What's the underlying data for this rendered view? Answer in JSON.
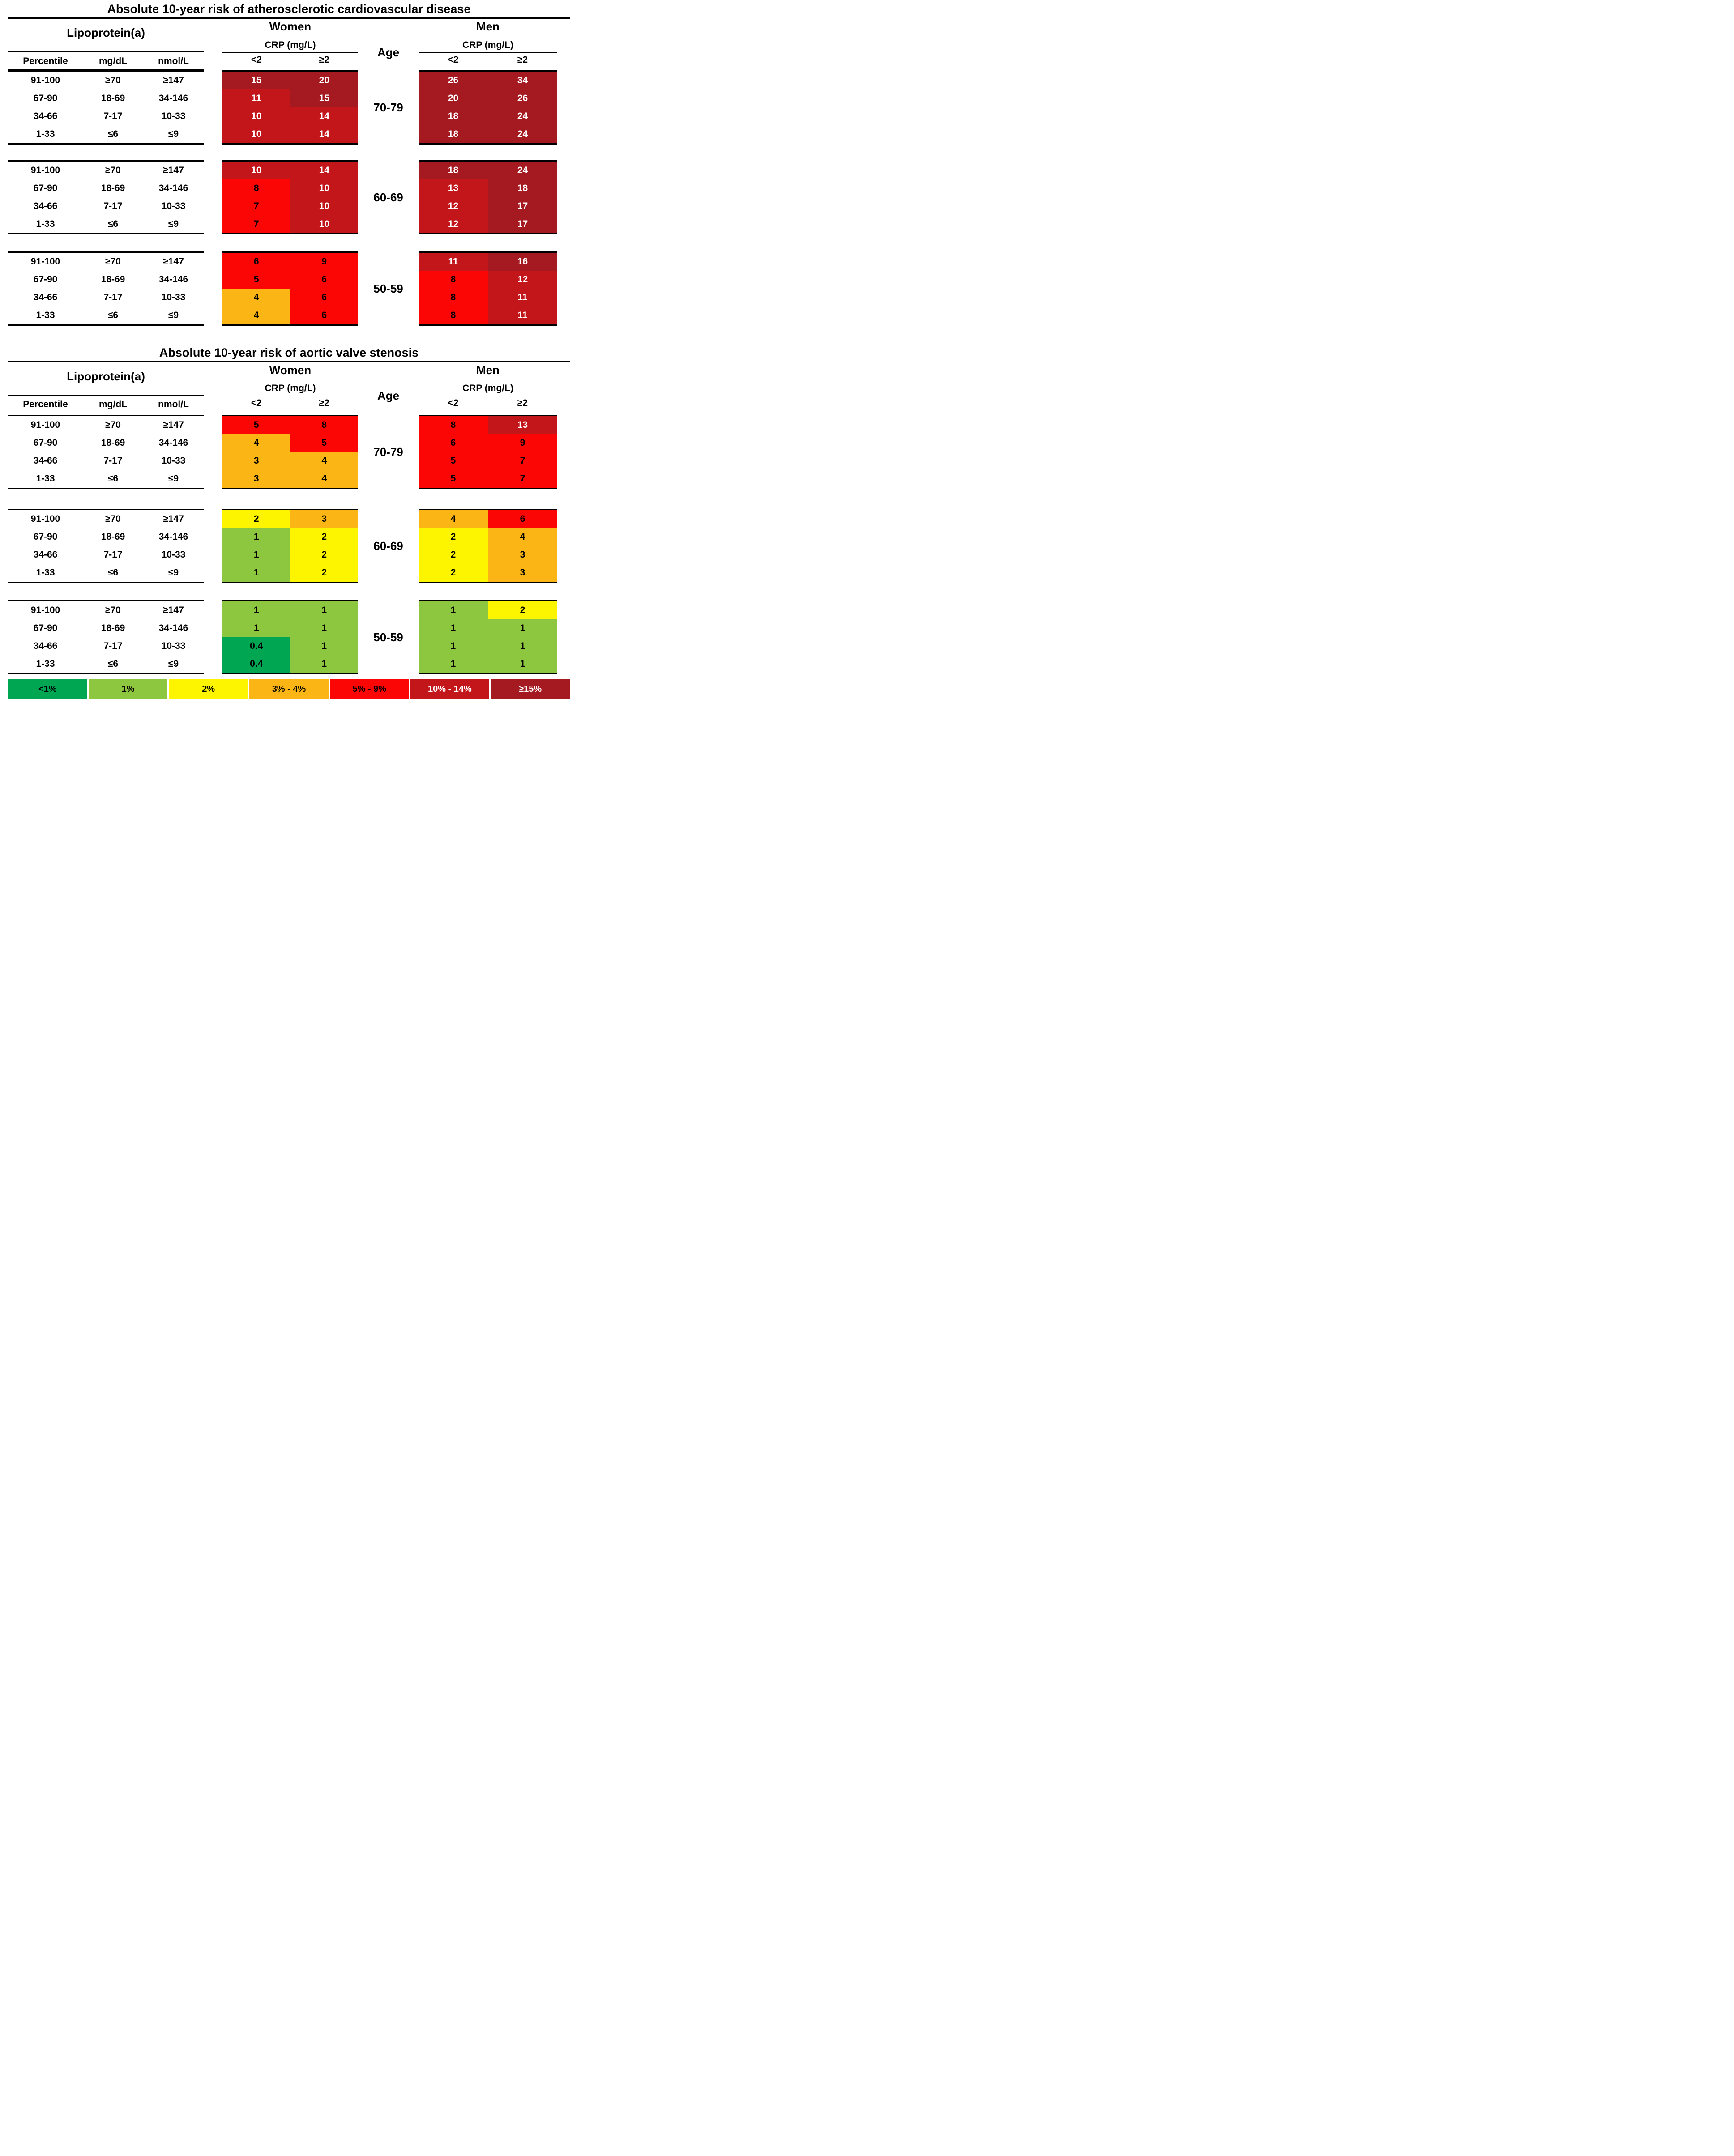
{
  "chart_data": {
    "type": "heatmap",
    "tables": [
      {
        "title": "Absolute 10-year risk of atherosclerotic cardiovascular disease",
        "groups": [
          {
            "age": "70-79",
            "women": [
              [
                {
                  "value": "15",
                  "band": "ge15"
                },
                {
                  "value": "20",
                  "band": "ge15"
                }
              ],
              [
                {
                  "value": "11",
                  "band": "b1014"
                },
                {
                  "value": "15",
                  "band": "ge15"
                }
              ],
              [
                {
                  "value": "10",
                  "band": "b1014"
                },
                {
                  "value": "14",
                  "band": "b1014"
                }
              ],
              [
                {
                  "value": "10",
                  "band": "b1014"
                },
                {
                  "value": "14",
                  "band": "b1014"
                }
              ]
            ],
            "men": [
              [
                {
                  "value": "26",
                  "band": "ge15"
                },
                {
                  "value": "34",
                  "band": "ge15"
                }
              ],
              [
                {
                  "value": "20",
                  "band": "ge15"
                },
                {
                  "value": "26",
                  "band": "ge15"
                }
              ],
              [
                {
                  "value": "18",
                  "band": "ge15"
                },
                {
                  "value": "24",
                  "band": "ge15"
                }
              ],
              [
                {
                  "value": "18",
                  "band": "ge15"
                },
                {
                  "value": "24",
                  "band": "ge15"
                }
              ]
            ]
          },
          {
            "age": "60-69",
            "women": [
              [
                {
                  "value": "10",
                  "band": "b1014"
                },
                {
                  "value": "14",
                  "band": "b1014"
                }
              ],
              [
                {
                  "value": "8",
                  "band": "b59"
                },
                {
                  "value": "10",
                  "band": "b1014"
                }
              ],
              [
                {
                  "value": "7",
                  "band": "b59"
                },
                {
                  "value": "10",
                  "band": "b1014"
                }
              ],
              [
                {
                  "value": "7",
                  "band": "b59"
                },
                {
                  "value": "10",
                  "band": "b1014"
                }
              ]
            ],
            "men": [
              [
                {
                  "value": "18",
                  "band": "ge15"
                },
                {
                  "value": "24",
                  "band": "ge15"
                }
              ],
              [
                {
                  "value": "13",
                  "band": "b1014"
                },
                {
                  "value": "18",
                  "band": "ge15"
                }
              ],
              [
                {
                  "value": "12",
                  "band": "b1014"
                },
                {
                  "value": "17",
                  "band": "ge15"
                }
              ],
              [
                {
                  "value": "12",
                  "band": "b1014"
                },
                {
                  "value": "17",
                  "band": "ge15"
                }
              ]
            ]
          },
          {
            "age": "50-59",
            "women": [
              [
                {
                  "value": "6",
                  "band": "b59"
                },
                {
                  "value": "9",
                  "band": "b59"
                }
              ],
              [
                {
                  "value": "5",
                  "band": "b59"
                },
                {
                  "value": "6",
                  "band": "b59"
                }
              ],
              [
                {
                  "value": "4",
                  "band": "b34"
                },
                {
                  "value": "6",
                  "band": "b59"
                }
              ],
              [
                {
                  "value": "4",
                  "band": "b34"
                },
                {
                  "value": "6",
                  "band": "b59"
                }
              ]
            ],
            "men": [
              [
                {
                  "value": "11",
                  "band": "b1014"
                },
                {
                  "value": "16",
                  "band": "ge15"
                }
              ],
              [
                {
                  "value": "8",
                  "band": "b59"
                },
                {
                  "value": "12",
                  "band": "b1014"
                }
              ],
              [
                {
                  "value": "8",
                  "band": "b59"
                },
                {
                  "value": "11",
                  "band": "b1014"
                }
              ],
              [
                {
                  "value": "8",
                  "band": "b59"
                },
                {
                  "value": "11",
                  "band": "b1014"
                }
              ]
            ]
          }
        ]
      },
      {
        "title": "Absolute 10-year risk of aortic valve stenosis",
        "groups": [
          {
            "age": "70-79",
            "women": [
              [
                {
                  "value": "5",
                  "band": "b59"
                },
                {
                  "value": "8",
                  "band": "b59"
                }
              ],
              [
                {
                  "value": "4",
                  "band": "b34"
                },
                {
                  "value": "5",
                  "band": "b59"
                }
              ],
              [
                {
                  "value": "3",
                  "band": "b34"
                },
                {
                  "value": "4",
                  "band": "b34"
                }
              ],
              [
                {
                  "value": "3",
                  "band": "b34"
                },
                {
                  "value": "4",
                  "band": "b34"
                }
              ]
            ],
            "men": [
              [
                {
                  "value": "8",
                  "band": "b59"
                },
                {
                  "value": "13",
                  "band": "b1014"
                }
              ],
              [
                {
                  "value": "6",
                  "band": "b59"
                },
                {
                  "value": "9",
                  "band": "b59"
                }
              ],
              [
                {
                  "value": "5",
                  "band": "b59"
                },
                {
                  "value": "7",
                  "band": "b59"
                }
              ],
              [
                {
                  "value": "5",
                  "band": "b59"
                },
                {
                  "value": "7",
                  "band": "b59"
                }
              ]
            ]
          },
          {
            "age": "60-69",
            "women": [
              [
                {
                  "value": "2",
                  "band": "y2"
                },
                {
                  "value": "3",
                  "band": "b34"
                }
              ],
              [
                {
                  "value": "1",
                  "band": "g1"
                },
                {
                  "value": "2",
                  "band": "y2"
                }
              ],
              [
                {
                  "value": "1",
                  "band": "g1"
                },
                {
                  "value": "2",
                  "band": "y2"
                }
              ],
              [
                {
                  "value": "1",
                  "band": "g1"
                },
                {
                  "value": "2",
                  "band": "y2"
                }
              ]
            ],
            "men": [
              [
                {
                  "value": "4",
                  "band": "b34"
                },
                {
                  "value": "6",
                  "band": "b59"
                }
              ],
              [
                {
                  "value": "2",
                  "band": "y2"
                },
                {
                  "value": "4",
                  "band": "b34"
                }
              ],
              [
                {
                  "value": "2",
                  "band": "y2"
                },
                {
                  "value": "3",
                  "band": "b34"
                }
              ],
              [
                {
                  "value": "2",
                  "band": "y2"
                },
                {
                  "value": "3",
                  "band": "b34"
                }
              ]
            ]
          },
          {
            "age": "50-59",
            "women": [
              [
                {
                  "value": "1",
                  "band": "g1"
                },
                {
                  "value": "1",
                  "band": "g1"
                }
              ],
              [
                {
                  "value": "1",
                  "band": "g1"
                },
                {
                  "value": "1",
                  "band": "g1"
                }
              ],
              [
                {
                  "value": "0.4",
                  "band": "lt1"
                },
                {
                  "value": "1",
                  "band": "g1"
                }
              ],
              [
                {
                  "value": "0.4",
                  "band": "lt1"
                },
                {
                  "value": "1",
                  "band": "g1"
                }
              ]
            ],
            "men": [
              [
                {
                  "value": "1",
                  "band": "g1"
                },
                {
                  "value": "2",
                  "band": "y2"
                }
              ],
              [
                {
                  "value": "1",
                  "band": "g1"
                },
                {
                  "value": "1",
                  "band": "g1"
                }
              ],
              [
                {
                  "value": "1",
                  "band": "g1"
                },
                {
                  "value": "1",
                  "band": "g1"
                }
              ],
              [
                {
                  "value": "1",
                  "band": "g1"
                },
                {
                  "value": "1",
                  "band": "g1"
                }
              ]
            ]
          }
        ]
      }
    ],
    "row_axis": {
      "group_label": "Lipoprotein(a)",
      "columns": [
        "Percentile",
        "mg/dL",
        "nmol/L"
      ],
      "rows": [
        [
          "91-100",
          "≥70",
          "≥147"
        ],
        [
          "67-90",
          "18-69",
          "34-146"
        ],
        [
          "34-66",
          "7-17",
          "10-33"
        ],
        [
          "1-33",
          "≤6",
          "≤9"
        ]
      ]
    },
    "col_axis": {
      "women": "Women",
      "men": "Men",
      "crp_label": "CRP (mg/L)",
      "crp_columns": [
        "<2",
        "≥2"
      ],
      "age_label": "Age",
      "age_groups": [
        "70-79",
        "60-69",
        "50-59"
      ]
    },
    "legend": {
      "position": "bottom",
      "items": [
        {
          "label": "<1%",
          "band": "lt1"
        },
        {
          "label": "1%",
          "band": "g1"
        },
        {
          "label": "2%",
          "band": "y2"
        },
        {
          "label": "3% - 4%",
          "band": "b34"
        },
        {
          "label": "5% - 9%",
          "band": "b59"
        },
        {
          "label": "10% - 14%",
          "band": "b1014"
        },
        {
          "label": "≥15%",
          "band": "ge15"
        }
      ]
    },
    "band_colors": {
      "lt1": "#00A651",
      "g1": "#8DC63F",
      "y2": "#FDF500",
      "b34": "#FBB616",
      "b59": "#FB0505",
      "b1014": "#C3161B",
      "ge15": "#A41A20"
    },
    "light_text_bands": [
      "b1014",
      "ge15"
    ],
    "grid": false
  }
}
